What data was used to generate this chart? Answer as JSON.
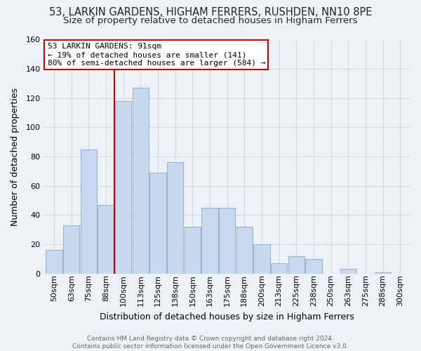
{
  "title_line1": "53, LARKIN GARDENS, HIGHAM FERRERS, RUSHDEN, NN10 8PE",
  "title_line2": "Size of property relative to detached houses in Higham Ferrers",
  "xlabel": "Distribution of detached houses by size in Higham Ferrers",
  "ylabel": "Number of detached properties",
  "footer_line1": "Contains HM Land Registry data © Crown copyright and database right 2024.",
  "footer_line2": "Contains public sector information licensed under the Open Government Licence v3.0.",
  "bar_labels": [
    "50sqm",
    "63sqm",
    "75sqm",
    "88sqm",
    "100sqm",
    "113sqm",
    "125sqm",
    "138sqm",
    "150sqm",
    "163sqm",
    "175sqm",
    "188sqm",
    "200sqm",
    "213sqm",
    "225sqm",
    "238sqm",
    "250sqm",
    "263sqm",
    "275sqm",
    "288sqm",
    "300sqm"
  ],
  "bar_values": [
    16,
    33,
    85,
    47,
    118,
    127,
    69,
    76,
    32,
    45,
    45,
    32,
    20,
    7,
    12,
    10,
    0,
    3,
    0,
    1,
    0
  ],
  "bar_color": "#c8d8ee",
  "bar_edge_color": "#9ab4cc",
  "vline_color": "#cc0000",
  "annotation_line1": "53 LARKIN GARDENS: 91sqm",
  "annotation_line2": "← 19% of detached houses are smaller (141)",
  "annotation_line3": "80% of semi-detached houses are larger (584) →",
  "annotation_box_color": "#ffffff",
  "annotation_box_edge": "#cc0000",
  "ylim": [
    0,
    160
  ],
  "yticks": [
    0,
    20,
    40,
    60,
    80,
    100,
    120,
    140,
    160
  ],
  "grid_color": "#d0d8e4",
  "bg_color": "#eef2f8",
  "title_fontsize": 10.5,
  "subtitle_fontsize": 9.5,
  "axis_label_fontsize": 9,
  "tick_fontsize": 8,
  "footer_fontsize": 6.5,
  "annotation_fontsize": 8
}
